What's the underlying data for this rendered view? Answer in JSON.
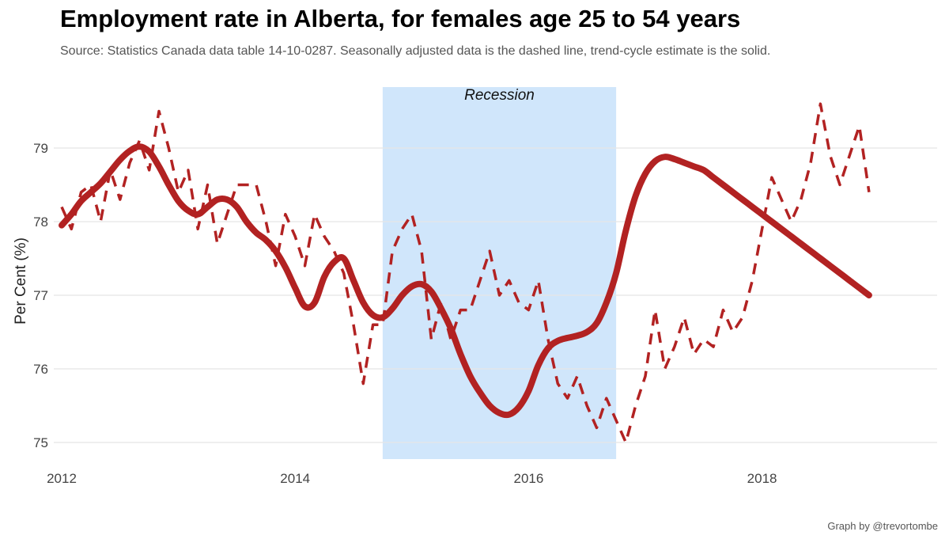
{
  "chart_data": {
    "type": "line",
    "title": "Employment rate in Alberta, for females age 25 to 54 years",
    "subtitle": "Source: Statistics Canada data table 14-10-0287. Seasonally adjusted data is the dashed line, trend-cycle estimate is the solid.",
    "caption": "Graph by @trevortombe",
    "xlabel": "",
    "ylabel": "Per Cent (%)",
    "xlim": [
      2012.0,
      2019.5
    ],
    "ylim": [
      74.8,
      79.9
    ],
    "x_ticks": [
      2012,
      2014,
      2016,
      2018
    ],
    "x_tick_labels": [
      "2012",
      "2014",
      "2016",
      "2018"
    ],
    "y_ticks": [
      75,
      76,
      77,
      78,
      79
    ],
    "y_tick_labels": [
      "75",
      "76",
      "77",
      "78",
      "79"
    ],
    "grid": true,
    "legend": "none",
    "colors": {
      "series": "#b22222",
      "recession": "#d0e6fb",
      "grid": "#e5e5e5"
    },
    "annotations": [
      {
        "label": "Recession",
        "x_start": 2014.75,
        "x_end": 2016.75
      }
    ],
    "series": [
      {
        "style": "dashed",
        "x": [
          2012.0,
          2012.083,
          2012.167,
          2012.25,
          2012.333,
          2012.417,
          2012.5,
          2012.583,
          2012.667,
          2012.75,
          2012.833,
          2012.917,
          2013.0,
          2013.083,
          2013.167,
          2013.25,
          2013.333,
          2013.417,
          2013.5,
          2013.583,
          2013.667,
          2013.75,
          2013.833,
          2013.917,
          2014.0,
          2014.083,
          2014.167,
          2014.25,
          2014.333,
          2014.417,
          2014.5,
          2014.583,
          2014.667,
          2014.75,
          2014.833,
          2014.917,
          2015.0,
          2015.083,
          2015.167,
          2015.25,
          2015.333,
          2015.417,
          2015.5,
          2015.583,
          2015.667,
          2015.75,
          2015.833,
          2015.917,
          2016.0,
          2016.083,
          2016.167,
          2016.25,
          2016.333,
          2016.417,
          2016.5,
          2016.583,
          2016.667,
          2016.75,
          2016.833,
          2016.917,
          2017.0,
          2017.083,
          2017.167,
          2017.25,
          2017.333,
          2017.417,
          2017.5,
          2017.583,
          2017.667,
          2017.75,
          2017.833,
          2017.917,
          2018.0,
          2018.083,
          2018.167,
          2018.25,
          2018.333,
          2018.417,
          2018.5,
          2018.583,
          2018.667,
          2018.75,
          2018.833,
          2018.917
        ],
        "values": [
          78.2,
          77.9,
          78.4,
          78.5,
          78.0,
          78.7,
          78.3,
          78.8,
          79.1,
          78.7,
          79.5,
          79.0,
          78.4,
          78.7,
          77.9,
          78.5,
          77.7,
          78.1,
          78.5,
          78.5,
          78.5,
          78.0,
          77.4,
          78.1,
          77.8,
          77.4,
          78.1,
          77.8,
          77.6,
          77.3,
          76.6,
          75.8,
          76.6,
          76.6,
          77.6,
          77.9,
          78.1,
          77.6,
          76.4,
          76.9,
          76.4,
          76.8,
          76.8,
          77.2,
          77.6,
          77.0,
          77.2,
          76.9,
          76.8,
          77.2,
          76.4,
          75.8,
          75.6,
          75.9,
          75.5,
          75.2,
          75.6,
          75.3,
          75.0,
          75.5,
          75.9,
          76.8,
          76.0,
          76.3,
          76.7,
          76.2,
          76.4,
          76.3,
          76.8,
          76.5,
          76.7,
          77.2,
          77.9,
          78.6,
          78.3,
          78.0,
          78.3,
          78.8,
          79.6,
          78.9,
          78.5,
          78.9,
          79.3,
          78.4
        ]
      },
      {
        "style": "solid",
        "x": [
          2012.0,
          2012.083,
          2012.167,
          2012.25,
          2012.333,
          2012.417,
          2012.5,
          2012.583,
          2012.667,
          2012.75,
          2012.833,
          2012.917,
          2013.0,
          2013.083,
          2013.167,
          2013.25,
          2013.333,
          2013.417,
          2013.5,
          2013.583,
          2013.667,
          2013.75,
          2013.833,
          2013.917,
          2014.0,
          2014.083,
          2014.167,
          2014.25,
          2014.333,
          2014.417,
          2014.5,
          2014.583,
          2014.667,
          2014.75,
          2014.833,
          2014.917,
          2015.0,
          2015.083,
          2015.167,
          2015.25,
          2015.333,
          2015.417,
          2015.5,
          2015.583,
          2015.667,
          2015.75,
          2015.833,
          2015.917,
          2016.0,
          2016.083,
          2016.167,
          2016.25,
          2016.333,
          2016.417,
          2016.5,
          2016.583,
          2016.667,
          2016.75,
          2016.833,
          2016.917,
          2017.0,
          2017.083,
          2017.167,
          2017.25,
          2017.333,
          2017.417,
          2017.5,
          2017.583,
          2017.667,
          2017.75,
          2017.833,
          2017.917,
          2018.0,
          2018.083,
          2018.167,
          2018.25,
          2018.333,
          2018.417,
          2018.5,
          2018.583,
          2018.667,
          2018.75,
          2018.833,
          2018.917
        ],
        "values": [
          77.95,
          78.1,
          78.28,
          78.4,
          78.52,
          78.68,
          78.84,
          78.96,
          79.02,
          78.95,
          78.75,
          78.5,
          78.28,
          78.15,
          78.1,
          78.2,
          78.3,
          78.3,
          78.2,
          78.0,
          77.85,
          77.75,
          77.6,
          77.38,
          77.1,
          76.85,
          76.9,
          77.25,
          77.45,
          77.5,
          77.2,
          76.9,
          76.73,
          76.7,
          76.82,
          77.0,
          77.12,
          77.15,
          77.05,
          76.82,
          76.55,
          76.2,
          75.9,
          75.68,
          75.5,
          75.4,
          75.38,
          75.48,
          75.7,
          76.05,
          76.28,
          76.38,
          76.42,
          76.45,
          76.5,
          76.62,
          76.9,
          77.3,
          77.88,
          78.35,
          78.65,
          78.82,
          78.88,
          78.85,
          78.8,
          78.75,
          78.7,
          78.6,
          78.5,
          78.4,
          78.3,
          78.2,
          78.1,
          78.0,
          77.9,
          77.8,
          77.7,
          77.6,
          77.5,
          77.4,
          77.3,
          77.2,
          77.1,
          77.0
        ]
      }
    ]
  }
}
